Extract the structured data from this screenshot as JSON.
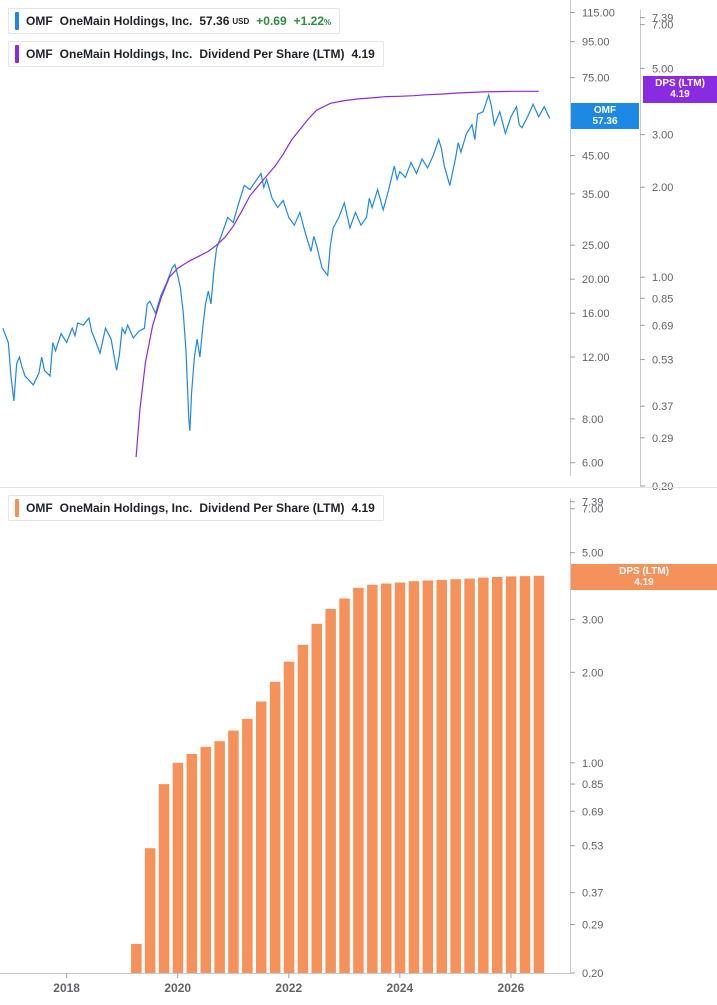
{
  "legends": {
    "price": {
      "ticker": "OMF",
      "name": "OneMain Holdings, Inc.",
      "price": "57.36",
      "currency": "USD",
      "change": "+0.69",
      "change_pct": "+1.22",
      "pct_sign": "%",
      "color": "#1e88e5"
    },
    "dps_top": {
      "ticker": "OMF",
      "name": "OneMain Holdings, Inc.",
      "metric": "Dividend Per Share (LTM)",
      "value": "4.19",
      "color": "#8a2be2"
    },
    "dps_bottom": {
      "ticker": "OMF",
      "name": "OneMain Holdings, Inc.",
      "metric": "Dividend Per Share (LTM)",
      "value": "4.19",
      "color": "#f5915a"
    }
  },
  "tags": {
    "price": {
      "line1": "OMF",
      "line2": "57.36",
      "color": "#1e88e5"
    },
    "dps_top": {
      "line1": "DPS (LTM)",
      "line2": "4.19",
      "color": "#8a2be2"
    },
    "dps_bottom": {
      "line1": "DPS (LTM)",
      "line2": "4.19",
      "color": "#f5915a"
    }
  },
  "chart_data": [
    {
      "type": "line",
      "panel": "top",
      "title": "",
      "log_scale": true,
      "x_range": [
        2016.8,
        2027.1
      ],
      "series": [
        {
          "name": "OMF",
          "axis": "price",
          "color": "#1e88e5",
          "x": [
            2016.85,
            2016.95,
            2017.0,
            2017.05,
            2017.1,
            2017.15,
            2017.2,
            2017.25,
            2017.3,
            2017.4,
            2017.5,
            2017.55,
            2017.6,
            2017.7,
            2017.75,
            2017.8,
            2017.9,
            2018.0,
            2018.1,
            2018.15,
            2018.2,
            2018.3,
            2018.4,
            2018.45,
            2018.5,
            2018.6,
            2018.7,
            2018.8,
            2018.9,
            2018.95,
            2019.0,
            2019.05,
            2019.1,
            2019.2,
            2019.3,
            2019.4,
            2019.45,
            2019.5,
            2019.6,
            2019.7,
            2019.8,
            2019.9,
            2019.95,
            2020.0,
            2020.05,
            2020.1,
            2020.15,
            2020.2,
            2020.22,
            2020.25,
            2020.3,
            2020.35,
            2020.4,
            2020.45,
            2020.5,
            2020.55,
            2020.6,
            2020.65,
            2020.7,
            2020.8,
            2020.9,
            2021.0,
            2021.1,
            2021.2,
            2021.3,
            2021.4,
            2021.5,
            2021.55,
            2021.6,
            2021.7,
            2021.8,
            2021.9,
            2022.0,
            2022.1,
            2022.2,
            2022.3,
            2022.4,
            2022.45,
            2022.5,
            2022.6,
            2022.7,
            2022.75,
            2022.8,
            2022.9,
            2023.0,
            2023.1,
            2023.2,
            2023.3,
            2023.4,
            2023.45,
            2023.5,
            2023.6,
            2023.7,
            2023.8,
            2023.9,
            2023.95,
            2024.0,
            2024.1,
            2024.2,
            2024.3,
            2024.4,
            2024.5,
            2024.6,
            2024.7,
            2024.75,
            2024.8,
            2024.9,
            2025.0,
            2025.05,
            2025.1,
            2025.2,
            2025.3,
            2025.35,
            2025.4,
            2025.5,
            2025.6,
            2025.65,
            2025.7,
            2025.8,
            2025.9,
            2026.0,
            2026.1,
            2026.15,
            2026.2,
            2026.3,
            2026.4,
            2026.5,
            2026.6,
            2026.7
          ],
          "y": [
            14.5,
            13.2,
            10.5,
            9.0,
            11.5,
            12.0,
            11.2,
            10.6,
            10.4,
            10.0,
            10.8,
            12.0,
            11.0,
            10.6,
            13.2,
            12.5,
            14.0,
            13.2,
            14.5,
            13.8,
            15.0,
            14.8,
            15.5,
            14.2,
            13.6,
            12.3,
            14.5,
            13.5,
            11.0,
            12.2,
            14.5,
            14.0,
            14.8,
            13.6,
            14.2,
            14.5,
            17.0,
            17.3,
            16.0,
            18.0,
            19.5,
            21.5,
            22.0,
            20.5,
            18.8,
            16.0,
            12.5,
            8.0,
            7.4,
            9.5,
            12.0,
            13.5,
            12.0,
            14.5,
            17.0,
            18.5,
            17.0,
            21.0,
            24.5,
            27.0,
            30.0,
            29.0,
            33.0,
            37.0,
            36.0,
            38.0,
            40.0,
            36.5,
            38.5,
            34.0,
            32.0,
            33.5,
            30.0,
            28.5,
            31.0,
            27.0,
            24.0,
            26.5,
            25.0,
            21.5,
            20.5,
            25.0,
            28.0,
            30.0,
            33.0,
            28.0,
            31.0,
            28.5,
            30.0,
            34.0,
            32.0,
            36.0,
            31.5,
            36.0,
            42.0,
            38.5,
            40.5,
            39.0,
            43.0,
            40.0,
            44.0,
            41.5,
            45.0,
            50.0,
            47.0,
            42.0,
            37.0,
            44.0,
            49.0,
            46.0,
            52.0,
            55.0,
            50.0,
            59.0,
            60.0,
            67.0,
            62.0,
            55.0,
            60.0,
            52.0,
            58.0,
            62.0,
            55.0,
            54.0,
            58.0,
            63.0,
            58.0,
            62.0,
            57.36
          ]
        },
        {
          "name": "Dividend Per Share (LTM)",
          "axis": "dps",
          "color": "#8a2be2",
          "x": [
            2019.25,
            2019.32,
            2019.42,
            2019.55,
            2019.7,
            2019.85,
            2020.0,
            2020.2,
            2020.4,
            2020.55,
            2020.7,
            2020.85,
            2021.0,
            2021.15,
            2021.3,
            2021.45,
            2021.6,
            2021.75,
            2021.9,
            2022.05,
            2022.2,
            2022.35,
            2022.5,
            2022.75,
            2023.0,
            2023.25,
            2023.5,
            2023.75,
            2024.0,
            2024.25,
            2024.5,
            2024.75,
            2025.0,
            2025.25,
            2025.5,
            2025.75,
            2026.0,
            2026.25,
            2026.5
          ],
          "y": [
            0.25,
            0.36,
            0.52,
            0.69,
            0.85,
            1.0,
            1.07,
            1.13,
            1.18,
            1.22,
            1.28,
            1.36,
            1.48,
            1.66,
            1.87,
            2.02,
            2.18,
            2.35,
            2.58,
            2.88,
            3.12,
            3.38,
            3.62,
            3.82,
            3.9,
            3.95,
            3.98,
            4.02,
            4.03,
            4.05,
            4.08,
            4.1,
            4.13,
            4.15,
            4.17,
            4.18,
            4.19,
            4.19,
            4.19
          ]
        }
      ],
      "axes": {
        "price": {
          "scale": "log",
          "ylim": [
            5.5,
            120
          ],
          "ticks": [
            115,
            95,
            75,
            55,
            45,
            35,
            25,
            20,
            16,
            12,
            8,
            6
          ],
          "tick_labels": [
            "115.00",
            "95.00",
            "75.00",
            "55.00",
            "45.00",
            "35.00",
            "25.00",
            "20.00",
            "16.00",
            "12.00",
            "8.00",
            "6.00"
          ]
        },
        "dps": {
          "scale": "log",
          "ylim": [
            0.2,
            7.6
          ],
          "ticks": [
            7.39,
            7.0,
            5.0,
            3.0,
            2.0,
            1.0,
            0.85,
            0.69,
            0.53,
            0.37,
            0.29,
            0.2
          ],
          "tick_labels": [
            "7.39",
            "7.00",
            "5.00",
            "3.00",
            "2.00",
            "1.00",
            "0.85",
            "0.69",
            "0.53",
            "0.37",
            "0.29",
            "0.20"
          ]
        }
      }
    },
    {
      "type": "bar",
      "panel": "bottom",
      "title": "",
      "log_scale": true,
      "x_range": [
        2016.8,
        2027.1
      ],
      "x_ticks": [
        2018,
        2020,
        2022,
        2024,
        2026
      ],
      "x_tick_labels": [
        "2018",
        "2020",
        "2022",
        "2024",
        "2026"
      ],
      "ylim": [
        0.2,
        7.6
      ],
      "y_ticks": [
        7.39,
        7.0,
        5.0,
        3.0,
        2.0,
        1.0,
        0.85,
        0.69,
        0.53,
        0.37,
        0.29,
        0.2
      ],
      "y_tick_labels": [
        "7.39",
        "7.00",
        "5.00",
        "3.00",
        "2.00",
        "1.00",
        "0.85",
        "0.69",
        "0.53",
        "0.37",
        "0.29",
        "0.20"
      ],
      "series": [
        {
          "name": "Dividend Per Share (LTM)",
          "color": "#f5915a",
          "x": [
            2019.25,
            2019.5,
            2019.75,
            2020.0,
            2020.25,
            2020.5,
            2020.75,
            2021.0,
            2021.25,
            2021.5,
            2021.75,
            2022.0,
            2022.25,
            2022.5,
            2022.75,
            2023.0,
            2023.25,
            2023.5,
            2023.75,
            2024.0,
            2024.25,
            2024.5,
            2024.75,
            2025.0,
            2025.25,
            2025.5,
            2025.75,
            2026.0,
            2026.25,
            2026.5
          ],
          "values": [
            0.25,
            0.52,
            0.85,
            1.0,
            1.07,
            1.13,
            1.18,
            1.28,
            1.4,
            1.6,
            1.86,
            2.17,
            2.47,
            2.9,
            3.25,
            3.52,
            3.82,
            3.91,
            3.95,
            3.98,
            4.02,
            4.04,
            4.06,
            4.08,
            4.1,
            4.13,
            4.15,
            4.17,
            4.18,
            4.19
          ]
        }
      ]
    }
  ]
}
